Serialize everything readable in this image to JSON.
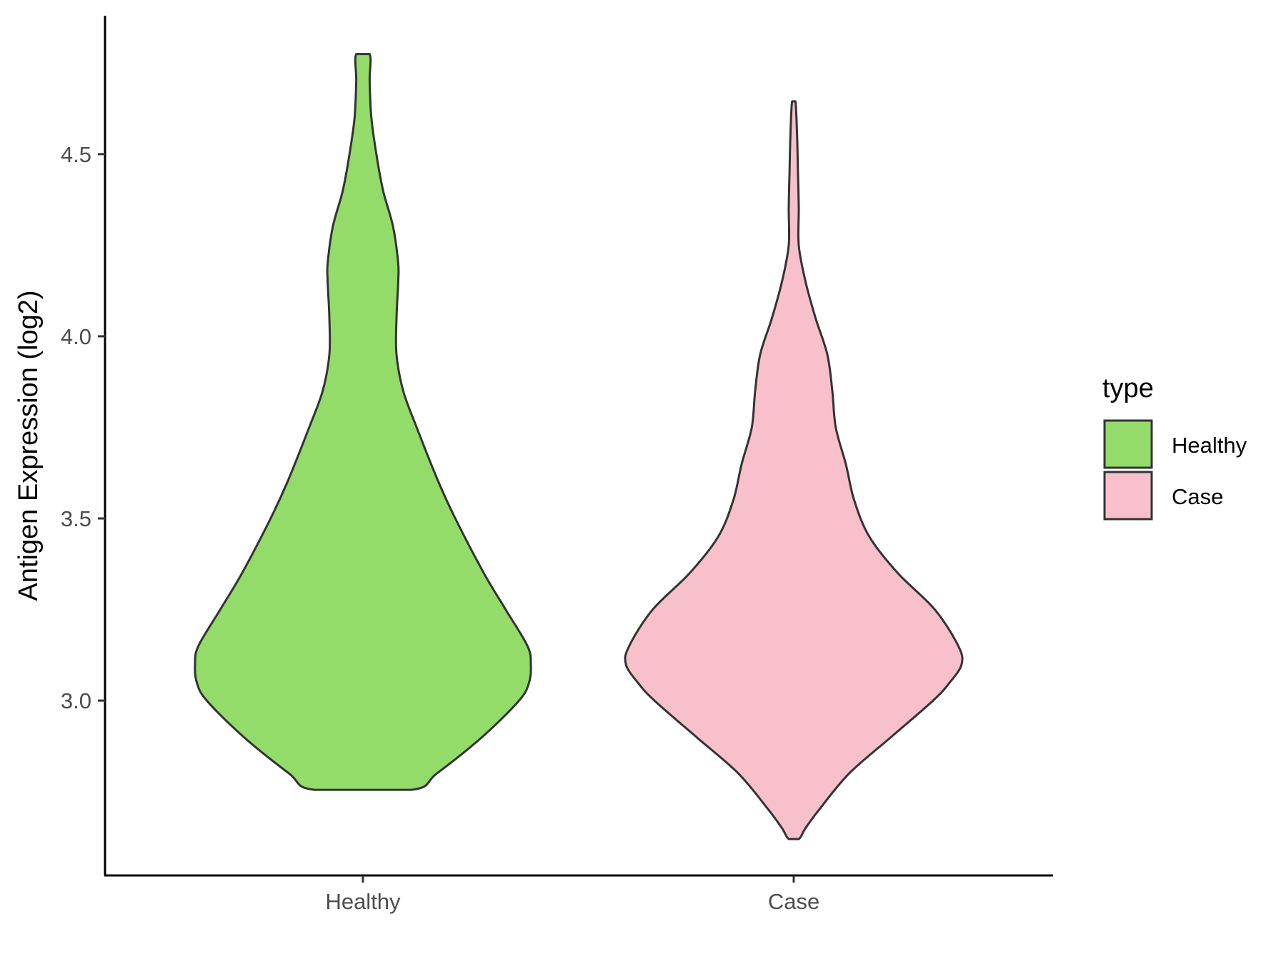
{
  "chart_data": {
    "type": "violin",
    "ylabel": "Antigen Expression (log2)",
    "xlabel": "",
    "ylim": [
      2.52,
      4.88
    ],
    "yticks": [
      3.0,
      3.5,
      4.0,
      4.5
    ],
    "ytick_labels": [
      "3.0",
      "3.5",
      "4.0",
      "4.5"
    ],
    "grid": false,
    "categories": [
      "Healthy",
      "Case"
    ],
    "legend": {
      "title": "type",
      "placement": "right",
      "entries": [
        "Healthy",
        "Case"
      ]
    },
    "series": [
      {
        "name": "Healthy",
        "color": "#93DC6A",
        "min": 2.755,
        "max": 4.775,
        "density_profile": [
          [
            2.755,
            0.29
          ],
          [
            2.8,
            0.44
          ],
          [
            2.9,
            0.71
          ],
          [
            3.0,
            0.93
          ],
          [
            3.05,
            0.99
          ],
          [
            3.1,
            1.0
          ],
          [
            3.15,
            0.98
          ],
          [
            3.25,
            0.85
          ],
          [
            3.35,
            0.72
          ],
          [
            3.5,
            0.55
          ],
          [
            3.6,
            0.45
          ],
          [
            3.75,
            0.32
          ],
          [
            3.85,
            0.24
          ],
          [
            3.95,
            0.2
          ],
          [
            4.05,
            0.2
          ],
          [
            4.15,
            0.21
          ],
          [
            4.2,
            0.21
          ],
          [
            4.3,
            0.18
          ],
          [
            4.4,
            0.12
          ],
          [
            4.5,
            0.08
          ],
          [
            4.6,
            0.05
          ],
          [
            4.7,
            0.04
          ],
          [
            4.775,
            0.04
          ]
        ]
      },
      {
        "name": "Case",
        "color": "#F8C0CB",
        "min": 2.62,
        "max": 4.645,
        "density_profile": [
          [
            2.62,
            0.03
          ],
          [
            2.65,
            0.07
          ],
          [
            2.7,
            0.15
          ],
          [
            2.8,
            0.33
          ],
          [
            2.9,
            0.58
          ],
          [
            3.0,
            0.83
          ],
          [
            3.05,
            0.93
          ],
          [
            3.1,
            1.0
          ],
          [
            3.15,
            0.98
          ],
          [
            3.25,
            0.84
          ],
          [
            3.35,
            0.62
          ],
          [
            3.45,
            0.45
          ],
          [
            3.55,
            0.36
          ],
          [
            3.65,
            0.31
          ],
          [
            3.75,
            0.25
          ],
          [
            3.85,
            0.23
          ],
          [
            3.95,
            0.2
          ],
          [
            4.05,
            0.13
          ],
          [
            4.15,
            0.07
          ],
          [
            4.25,
            0.03
          ],
          [
            4.35,
            0.03
          ],
          [
            4.45,
            0.025
          ],
          [
            4.55,
            0.02
          ],
          [
            4.645,
            0.01
          ]
        ]
      }
    ]
  }
}
